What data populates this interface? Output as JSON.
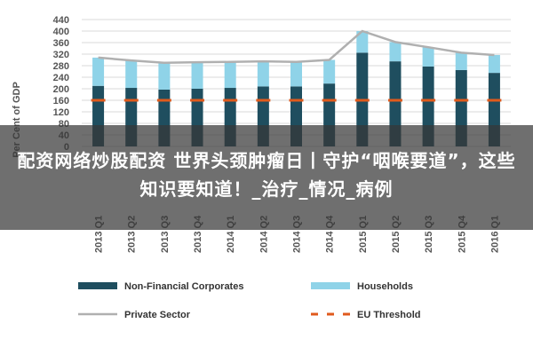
{
  "overlay": {
    "title": "配资网络炒股配资 世界头颈肿瘤日丨守护“咽喉要道”，这些知识要知道！_治疗_情况_病例"
  },
  "colors": {
    "non_financial": "#1f4e5f",
    "households": "#8fd3e8",
    "private_sector": "#b0b0b0",
    "eu_threshold": "#e05a1c"
  },
  "chart_data": {
    "type": "bar",
    "stacked": true,
    "ylabel": "Per Cent of GDP",
    "ylim": [
      0,
      440
    ],
    "yticks": [
      0,
      40,
      80,
      120,
      160,
      200,
      240,
      280,
      320,
      360,
      400,
      440
    ],
    "grid": true,
    "legend_position": "bottom",
    "categories": [
      "2013 Q1",
      "2013 Q2",
      "2013 Q3",
      "2013 Q4",
      "2014 Q1",
      "2014 Q2",
      "2014 Q3",
      "2014 Q4",
      "2015 Q1",
      "2015 Q2",
      "2015 Q3",
      "2015 Q4",
      "2016 Q1"
    ],
    "series": [
      {
        "name": "Non-Financial Corporates",
        "kind": "bar",
        "values": [
          210,
          203,
          197,
          200,
          203,
          208,
          208,
          218,
          325,
          295,
          277,
          265,
          255
        ]
      },
      {
        "name": "Households",
        "kind": "bar",
        "values": [
          98,
          95,
          93,
          92,
          90,
          87,
          85,
          82,
          75,
          67,
          67,
          60,
          62
        ]
      },
      {
        "name": "Private Sector",
        "kind": "line",
        "values": [
          308,
          298,
          290,
          292,
          293,
          295,
          293,
          300,
          400,
          362,
          344,
          325,
          317
        ]
      },
      {
        "name": "EU Threshold",
        "kind": "dashed-line",
        "values": [
          160,
          160,
          160,
          160,
          160,
          160,
          160,
          160,
          160,
          160,
          160,
          160,
          160
        ]
      }
    ]
  }
}
